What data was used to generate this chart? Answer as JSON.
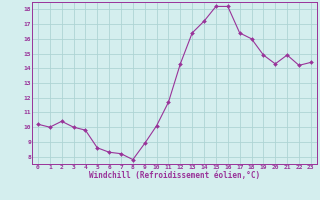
{
  "x": [
    0,
    1,
    2,
    3,
    4,
    5,
    6,
    7,
    8,
    9,
    10,
    11,
    12,
    13,
    14,
    15,
    16,
    17,
    18,
    19,
    20,
    21,
    22,
    23
  ],
  "y": [
    10.2,
    10.0,
    10.4,
    10.0,
    9.8,
    8.6,
    8.3,
    8.2,
    7.8,
    8.9,
    10.1,
    11.7,
    14.3,
    16.4,
    17.2,
    18.2,
    18.2,
    16.4,
    16.0,
    14.9,
    14.3,
    14.9,
    14.2,
    14.4
  ],
  "line_color": "#993399",
  "marker_color": "#993399",
  "bg_color": "#d4eeee",
  "grid_color": "#aed4d4",
  "xlabel": "Windchill (Refroidissement éolien,°C)",
  "ylabel_ticks": [
    8,
    9,
    10,
    11,
    12,
    13,
    14,
    15,
    16,
    17,
    18
  ],
  "xlim": [
    -0.5,
    23.5
  ],
  "ylim": [
    7.5,
    18.5
  ],
  "xticks": [
    0,
    1,
    2,
    3,
    4,
    5,
    6,
    7,
    8,
    9,
    10,
    11,
    12,
    13,
    14,
    15,
    16,
    17,
    18,
    19,
    20,
    21,
    22,
    23
  ]
}
